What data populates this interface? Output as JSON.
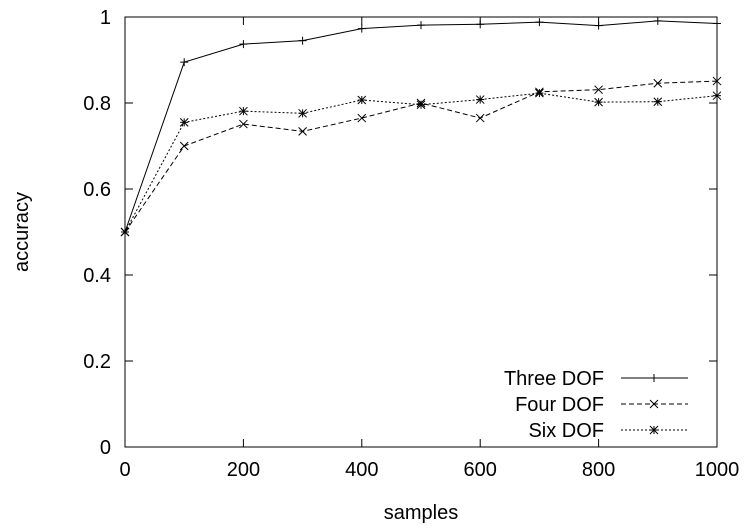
{
  "chart_data": {
    "type": "line",
    "xlabel": "samples",
    "ylabel": "accuracy",
    "xlim": [
      0,
      1000
    ],
    "ylim": [
      0,
      1
    ],
    "xticks": [
      0,
      200,
      400,
      600,
      800,
      1000
    ],
    "yticks": [
      0,
      0.2,
      0.4,
      0.6,
      0.8,
      1
    ],
    "xtick_labels": [
      "0",
      "200",
      "400",
      "600",
      "800",
      "1000"
    ],
    "ytick_labels": [
      "0",
      "0.2",
      "0.4",
      "0.6",
      "0.8",
      "1"
    ],
    "grid": false,
    "legend_position": "bottom-right",
    "x": [
      0,
      100,
      200,
      300,
      400,
      500,
      600,
      700,
      800,
      900,
      1000
    ],
    "series": [
      {
        "name": "Three DOF",
        "marker": "plus",
        "line_style": "solid",
        "color": "#000000",
        "values": [
          0.5,
          0.895,
          0.937,
          0.945,
          0.973,
          0.981,
          0.983,
          0.988,
          0.98,
          0.991,
          0.985
        ]
      },
      {
        "name": "Four DOF",
        "marker": "cross",
        "line_style": "dashed",
        "color": "#000000",
        "values": [
          0.5,
          0.7,
          0.751,
          0.734,
          0.765,
          0.8,
          0.765,
          0.826,
          0.831,
          0.846,
          0.851
        ]
      },
      {
        "name": "Six DOF",
        "marker": "star",
        "line_style": "dotted",
        "color": "#000000",
        "values": [
          0.5,
          0.755,
          0.781,
          0.776,
          0.807,
          0.796,
          0.808,
          0.823,
          0.802,
          0.803,
          0.817
        ]
      }
    ]
  }
}
